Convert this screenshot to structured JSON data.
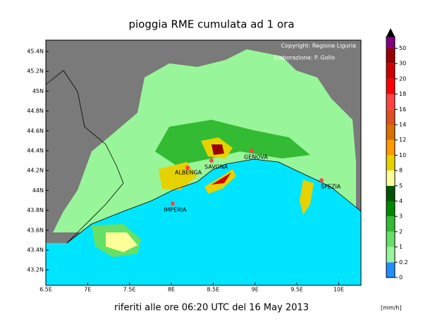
{
  "title": "pioggia RME cumulata ad 1 ora",
  "copyright": "Copyright: Regione Liguria",
  "elaboration": "Elaborazione: P. Gollo",
  "footer": "riferiti alle ore 06:20 UTC del 16 May 2013",
  "unit": "[mm/h]",
  "cities": [
    "SAVONA",
    "GENOVA",
    "SPEZIA",
    "IMPERIA",
    "ALBENGA"
  ],
  "map": {
    "lon_ticks": [
      {
        "value": 6.5,
        "label": "6.5E"
      },
      {
        "value": 7,
        "label": "7E"
      },
      {
        "value": 7.5,
        "label": "7.5E"
      },
      {
        "value": 8,
        "label": "8E"
      },
      {
        "value": 8.5,
        "label": "8.5E"
      },
      {
        "value": 9,
        "label": "9E"
      },
      {
        "value": 9.5,
        "label": "9.5E"
      },
      {
        "value": 10,
        "label": "10E"
      }
    ],
    "lat_ticks": [
      {
        "value": 45.4,
        "label": "45.4N"
      },
      {
        "value": 45.2,
        "label": "45.2N"
      },
      {
        "value": 45,
        "label": "45N"
      },
      {
        "value": 44.8,
        "label": "44.8N"
      },
      {
        "value": 44.6,
        "label": "44.6N"
      },
      {
        "value": 44.4,
        "label": "44.4N"
      },
      {
        "value": 44.2,
        "label": "44.2N"
      },
      {
        "value": 44,
        "label": "44N"
      },
      {
        "value": 43.8,
        "label": "43.8N"
      },
      {
        "value": 43.6,
        "label": "43.6N"
      },
      {
        "value": 43.4,
        "label": "43.4N"
      },
      {
        "value": 43.2,
        "label": "43.2N"
      }
    ]
  },
  "colorbar": {
    "ticks": [
      0,
      0.2,
      1,
      2,
      3,
      4,
      5,
      8,
      10,
      12,
      14,
      16,
      18,
      20,
      30,
      50
    ],
    "colors": [
      "#1e90ff",
      "#99f599",
      "#66e066",
      "#33bb33",
      "#008800",
      "#005500",
      "#ffff99",
      "#e6d200",
      "#ff9900",
      "#d97000",
      "#e05020",
      "#ff4444",
      "#ff0000",
      "#cc0000",
      "#990000",
      "#800080"
    ]
  }
}
